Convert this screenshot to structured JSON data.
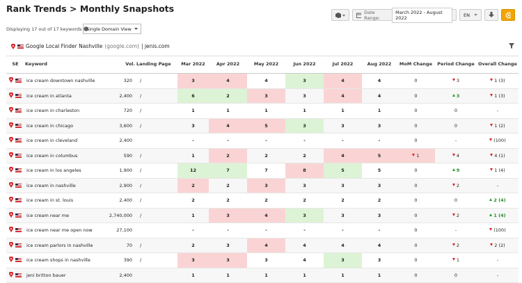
{
  "header": {
    "title": "Rank Trends > Monthly Snapshots",
    "date_range_label": "Date Range:",
    "date_range": "March 2022 - August 2022",
    "language": "EN"
  },
  "summary": {
    "displaying": "Displaying 17 out of 17 keywords",
    "view": "Single Domain View"
  },
  "filter": {
    "engine": "Google Local Finder Nashville",
    "engine_domain": "(google.com)",
    "domain": "| jenis.com"
  },
  "table": {
    "columns": [
      "SE",
      "Keyword",
      "Vol.",
      "Landing Page",
      "Mar 2022",
      "Apr 2022",
      "May 2022",
      "Jun 2022",
      "Jul 2022",
      "Aug 2022",
      "MoM Change",
      "Period Change",
      "Overall Change"
    ],
    "rows": [
      {
        "keyword": "ice cream downtown nashville",
        "volume": "320",
        "landing_page": "/",
        "ranks": [
          3,
          4,
          4,
          3,
          4,
          4
        ],
        "rank_status": [
          "worse",
          "worse",
          "same",
          "better",
          "worse",
          "same"
        ],
        "mom": {
          "text": "0"
        },
        "period": {
          "dir": "down",
          "text": "3"
        },
        "overall": {
          "dir": "down",
          "text": "1 (3)"
        }
      },
      {
        "keyword": "ice cream in atlanta",
        "volume": "2,400",
        "landing_page": "/",
        "ranks": [
          6,
          2,
          3,
          3,
          4,
          4
        ],
        "rank_status": [
          "better",
          "better",
          "worse",
          "same",
          "worse",
          "same"
        ],
        "mom": {
          "text": "0"
        },
        "period": {
          "dir": "up",
          "text": "3"
        },
        "overall": {
          "dir": "down",
          "text": "1 (3)"
        }
      },
      {
        "keyword": "ice cream in charleston",
        "volume": "720",
        "landing_page": "/",
        "ranks": [
          1,
          1,
          1,
          1,
          1,
          1
        ],
        "rank_status": [
          "same",
          "same",
          "same",
          "same",
          "same",
          "same"
        ],
        "mom": {
          "text": "0"
        },
        "period": {
          "text": "0"
        },
        "overall": {
          "text": "-"
        }
      },
      {
        "keyword": "ice cream in chicago",
        "volume": "3,600",
        "landing_page": "/",
        "ranks": [
          3,
          4,
          5,
          3,
          3,
          3
        ],
        "rank_status": [
          "same",
          "worse",
          "worse",
          "better",
          "same",
          "same"
        ],
        "mom": {
          "text": "0"
        },
        "period": {
          "text": "0"
        },
        "overall": {
          "dir": "down",
          "text": "1 (2)"
        }
      },
      {
        "keyword": "ice cream in cleveland",
        "volume": "2,400",
        "landing_page": null,
        "ranks": [
          "-",
          "-",
          "-",
          "-",
          "-",
          "-"
        ],
        "rank_status": [
          "same",
          "same",
          "same",
          "same",
          "same",
          "same"
        ],
        "mom": {
          "text": "0"
        },
        "period": {
          "text": "-"
        },
        "overall": {
          "dir": "down",
          "text": "(100)"
        }
      },
      {
        "keyword": "ice cream in columbus",
        "volume": "590",
        "landing_page": "/",
        "ranks": [
          1,
          2,
          2,
          2,
          4,
          5
        ],
        "rank_status": [
          "same",
          "worse",
          "same",
          "same",
          "worse",
          "worse"
        ],
        "mom": {
          "dir": "down",
          "text": "1",
          "status": "worse"
        },
        "period": {
          "dir": "down",
          "text": "4"
        },
        "overall": {
          "dir": "down",
          "text": "4 (1)"
        }
      },
      {
        "keyword": "ice cream in los angeles",
        "volume": "1,900",
        "landing_page": "/",
        "ranks": [
          12,
          7,
          7,
          8,
          5,
          5
        ],
        "rank_status": [
          "better",
          "better",
          "same",
          "worse",
          "better",
          "same"
        ],
        "mom": {
          "text": "0"
        },
        "period": {
          "dir": "up",
          "text": "9"
        },
        "overall": {
          "dir": "down",
          "text": "1 (4)"
        }
      },
      {
        "keyword": "ice cream in nashville",
        "volume": "2,900",
        "landing_page": "/",
        "ranks": [
          2,
          2,
          3,
          3,
          3,
          3
        ],
        "rank_status": [
          "worse",
          "same",
          "worse",
          "same",
          "same",
          "same"
        ],
        "mom": {
          "text": "0"
        },
        "period": {
          "dir": "down",
          "text": "2"
        },
        "overall": {
          "text": "-"
        }
      },
      {
        "keyword": "ice cream in st. louis",
        "volume": "2,400",
        "landing_page": "/",
        "ranks": [
          2,
          2,
          2,
          2,
          2,
          2
        ],
        "rank_status": [
          "same",
          "same",
          "same",
          "same",
          "same",
          "same"
        ],
        "mom": {
          "text": "0"
        },
        "period": {
          "text": "0"
        },
        "overall": {
          "dir": "up",
          "text": "2 (4)"
        }
      },
      {
        "keyword": "ice cream near me",
        "volume": "2,740,000",
        "landing_page": "/",
        "ranks": [
          1,
          3,
          4,
          3,
          3,
          3
        ],
        "rank_status": [
          "same",
          "worse",
          "worse",
          "better",
          "same",
          "same"
        ],
        "mom": {
          "text": "0"
        },
        "period": {
          "dir": "down",
          "text": "2"
        },
        "overall": {
          "dir": "up",
          "text": "1 (4)"
        }
      },
      {
        "keyword": "ice cream near me open now",
        "volume": "27,100",
        "landing_page": null,
        "ranks": [
          "-",
          "-",
          "-",
          "-",
          "-",
          "-"
        ],
        "rank_status": [
          "same",
          "same",
          "same",
          "same",
          "same",
          "same"
        ],
        "mom": {
          "text": "0"
        },
        "period": {
          "text": "-"
        },
        "overall": {
          "dir": "down",
          "text": "(100)"
        }
      },
      {
        "keyword": "ice cream parlors in nashville",
        "volume": "70",
        "landing_page": "/",
        "ranks": [
          2,
          3,
          4,
          4,
          4,
          4
        ],
        "rank_status": [
          "same",
          "same",
          "worse",
          "same",
          "same",
          "same"
        ],
        "mom": {
          "text": "0"
        },
        "period": {
          "dir": "down",
          "text": "2"
        },
        "overall": {
          "dir": "down",
          "text": "2 (2)"
        }
      },
      {
        "keyword": "ice cream shops in nashville",
        "volume": "390",
        "landing_page": "/",
        "ranks": [
          3,
          3,
          3,
          4,
          3,
          3
        ],
        "rank_status": [
          "worse",
          "worse",
          "same",
          "same",
          "better",
          "same"
        ],
        "mom": {
          "text": "0"
        },
        "period": {
          "dir": "down",
          "text": "1"
        },
        "overall": {
          "text": "-"
        }
      },
      {
        "keyword": "jeni britton bauer",
        "volume": "2,400",
        "landing_page": null,
        "ranks": [
          1,
          1,
          1,
          1,
          1,
          1
        ],
        "rank_status": [
          "same",
          "same",
          "same",
          "same",
          "same",
          "same"
        ],
        "mom": {
          "text": "0"
        },
        "period": {
          "text": "0"
        },
        "overall": {
          "text": "-"
        }
      }
    ]
  }
}
